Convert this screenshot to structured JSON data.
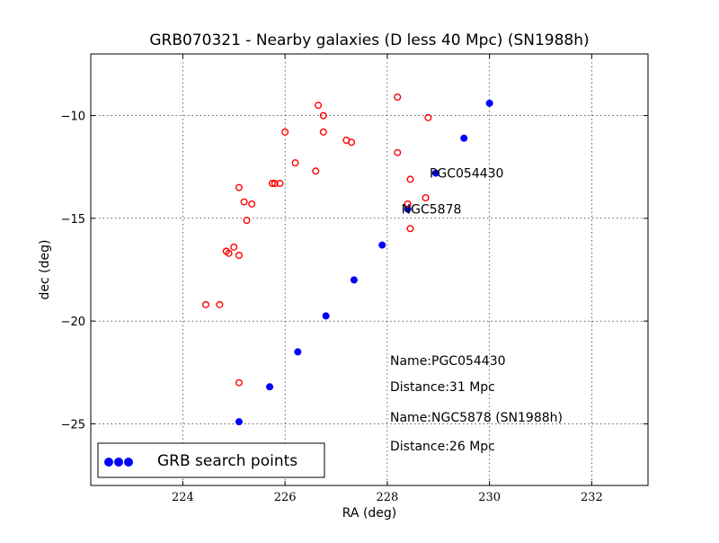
{
  "chart_data": {
    "type": "scatter",
    "title": "GRB070321 - Nearby galaxies (D less 40 Mpc) (SN1988h)",
    "xlabel": "RA (deg)",
    "ylabel": "dec (deg)",
    "xlim": [
      222.2,
      233.1
    ],
    "ylim": [
      -28.0,
      -7.0
    ],
    "xticks": [
      224,
      226,
      228,
      230,
      232
    ],
    "yticks": [
      -10,
      -15,
      -20,
      -25
    ],
    "ytick_labels": [
      "−10",
      "−15",
      "−20",
      "−25"
    ],
    "grid": true,
    "legend": {
      "placement": "lower-left",
      "entries": [
        "GRB search points"
      ]
    },
    "series": [
      {
        "name": "GRB search points",
        "marker": "filled-circle",
        "color": "#0000ff",
        "points": [
          [
            230.0,
            -9.4
          ],
          [
            229.5,
            -11.1
          ],
          [
            228.95,
            -12.8
          ],
          [
            228.4,
            -14.55
          ],
          [
            227.9,
            -16.3
          ],
          [
            227.35,
            -18.0
          ],
          [
            226.8,
            -19.75
          ],
          [
            226.25,
            -21.5
          ],
          [
            225.7,
            -23.2
          ],
          [
            225.1,
            -24.9
          ]
        ]
      },
      {
        "marker": "open-circle",
        "color": "#ff0000",
        "points": [
          [
            228.2,
            -9.1
          ],
          [
            228.8,
            -10.1
          ],
          [
            226.65,
            -9.5
          ],
          [
            226.75,
            -10.0
          ],
          [
            226.0,
            -10.8
          ],
          [
            226.75,
            -10.8
          ],
          [
            227.2,
            -11.2
          ],
          [
            227.3,
            -11.3
          ],
          [
            228.2,
            -11.8
          ],
          [
            226.2,
            -12.3
          ],
          [
            226.6,
            -12.7
          ],
          [
            228.45,
            -13.1
          ],
          [
            225.75,
            -13.3
          ],
          [
            225.8,
            -13.3
          ],
          [
            225.9,
            -13.3
          ],
          [
            225.1,
            -13.5
          ],
          [
            228.75,
            -14.0
          ],
          [
            225.2,
            -14.2
          ],
          [
            225.35,
            -14.3
          ],
          [
            228.4,
            -14.3
          ],
          [
            225.25,
            -15.1
          ],
          [
            228.45,
            -15.5
          ],
          [
            225.0,
            -16.4
          ],
          [
            224.85,
            -16.6
          ],
          [
            224.9,
            -16.7
          ],
          [
            225.1,
            -16.8
          ],
          [
            224.45,
            -19.2
          ],
          [
            224.72,
            -19.2
          ],
          [
            225.1,
            -23.0
          ]
        ]
      }
    ],
    "point_labels": [
      {
        "text": "PGC054430",
        "x": 228.95,
        "y": -12.8
      },
      {
        "text": "NGC5878",
        "x": 228.4,
        "y": -14.55
      }
    ],
    "annotations": [
      "Name:PGC054430",
      "Distance:31 Mpc",
      "Name:NGC5878 (SN1988h)",
      "Distance:26 Mpc"
    ]
  }
}
